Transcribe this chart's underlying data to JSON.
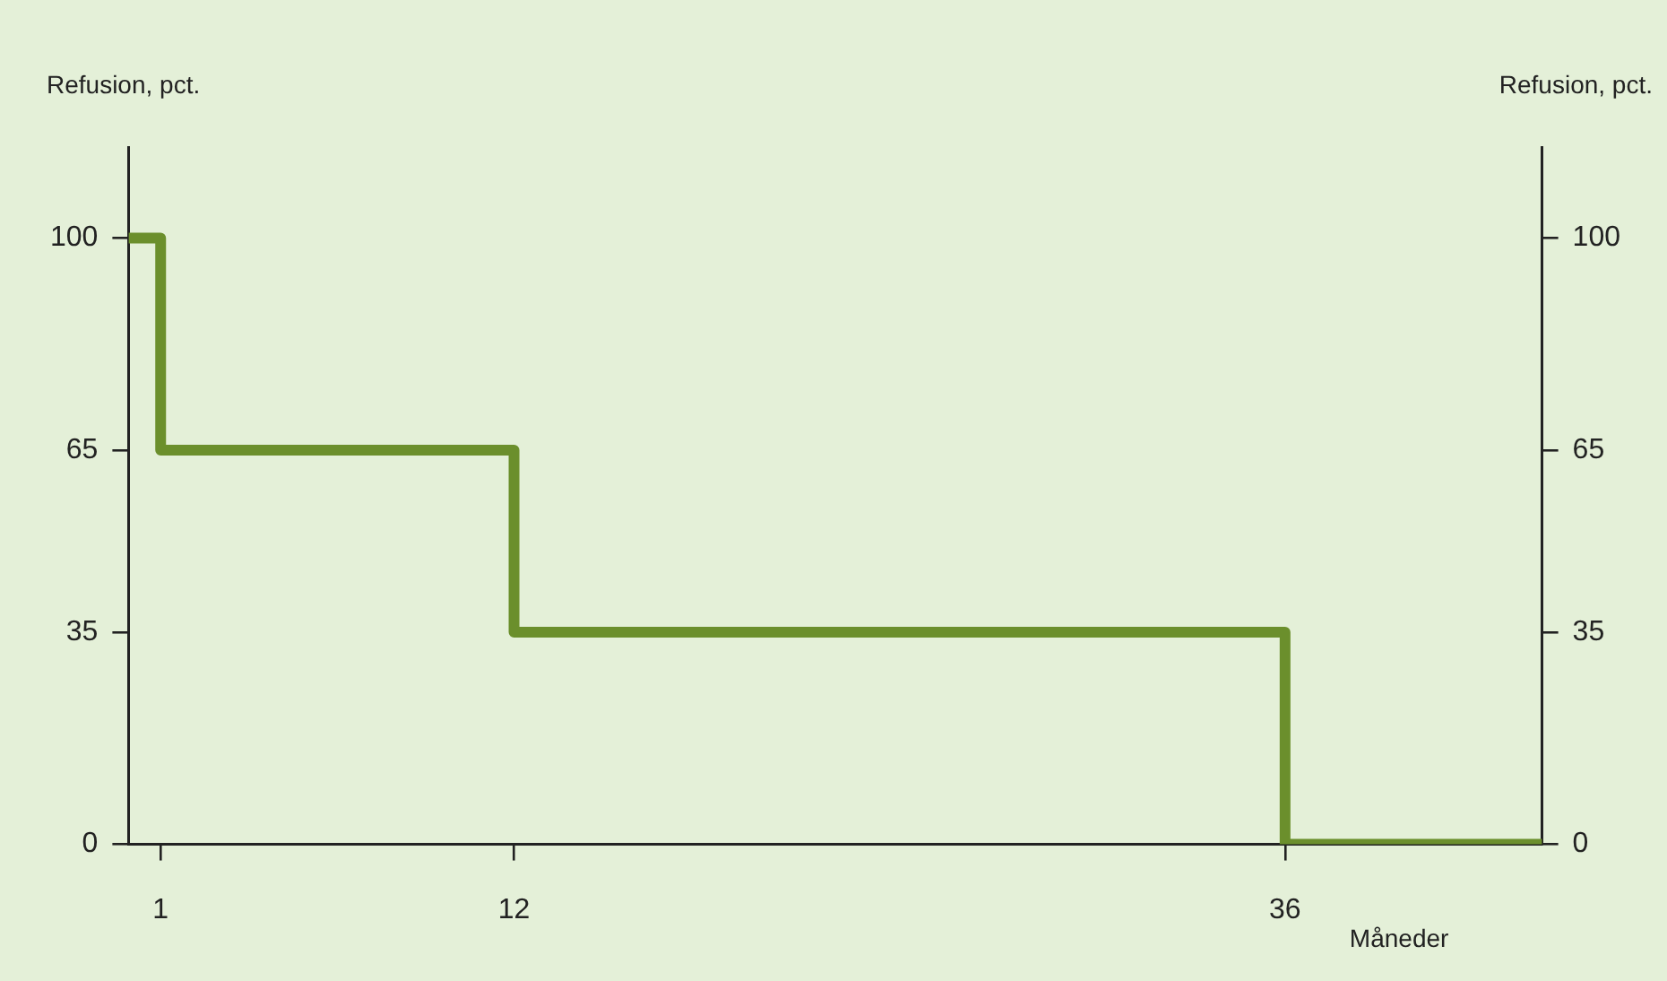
{
  "chart_data": {
    "type": "step",
    "xlabel": "Måneder",
    "ylabel": "Refusion, pct.",
    "y2label": "Refusion, pct.",
    "x": [
      0,
      1,
      12,
      36,
      44
    ],
    "values": [
      100,
      65,
      35,
      0,
      0
    ],
    "color": "#6b8f2c",
    "marker": "none",
    "line_style": "solid",
    "xlim": [
      0,
      44
    ],
    "xticks": [
      1,
      12,
      36
    ],
    "ylim": [
      0,
      115
    ],
    "yticks": [
      0,
      35,
      65,
      100
    ],
    "y2lim": [
      0,
      115
    ],
    "y2ticks": [
      0,
      35,
      65,
      100
    ]
  }
}
